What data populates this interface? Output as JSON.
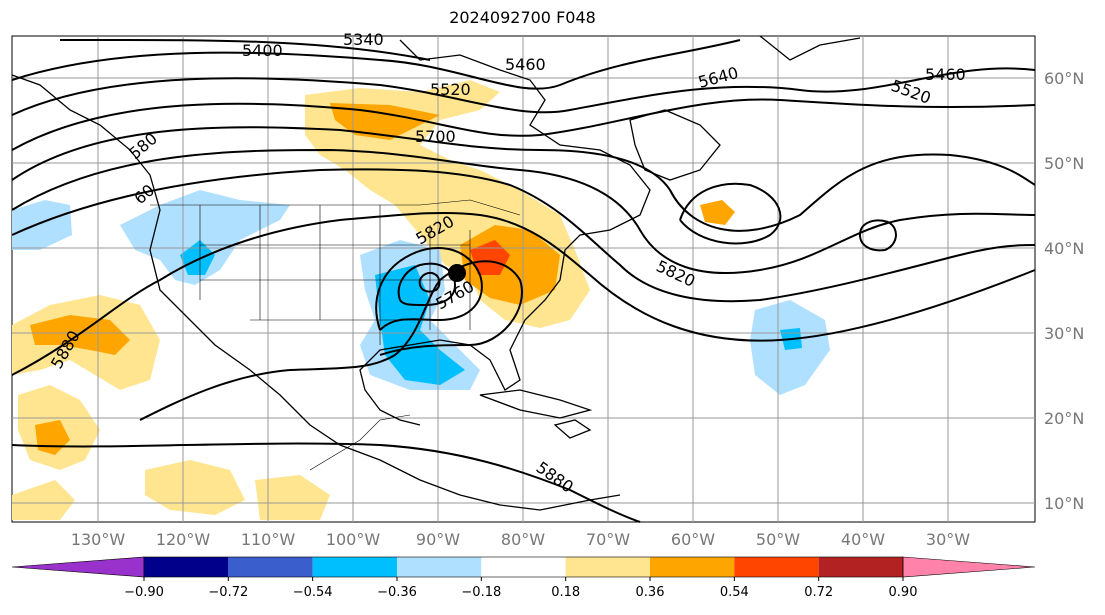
{
  "title": "2024092700 F048",
  "map": {
    "lon_labels": [
      "130°W",
      "120°W",
      "110°W",
      "100°W",
      "90°W",
      "80°W",
      "70°W",
      "60°W",
      "50°W",
      "40°W",
      "30°W"
    ],
    "lat_labels": [
      "60°N",
      "50°N",
      "40°N",
      "30°N",
      "20°N",
      "10°N"
    ],
    "contour_labels": [
      "5400",
      "5340",
      "5460",
      "5520",
      "5700",
      "5640",
      "5460",
      "5520",
      "5820",
      "5760",
      "5820",
      "5880",
      "5880",
      "580",
      "60"
    ],
    "storm_marker": "storm-center"
  },
  "colorbar": {
    "tick_labels": [
      "−0.90",
      "−0.72",
      "−0.54",
      "−0.36",
      "−0.18",
      "0.18",
      "0.36",
      "0.54",
      "0.72",
      "0.90"
    ],
    "colors": [
      "#9932cc",
      "#00008b",
      "#3a5fcd",
      "#00bfff",
      "#b0e0ff",
      "#ffffff",
      "#ffe58f",
      "#ffa500",
      "#ff4500",
      "#b22222",
      "#ff82ab"
    ]
  }
}
